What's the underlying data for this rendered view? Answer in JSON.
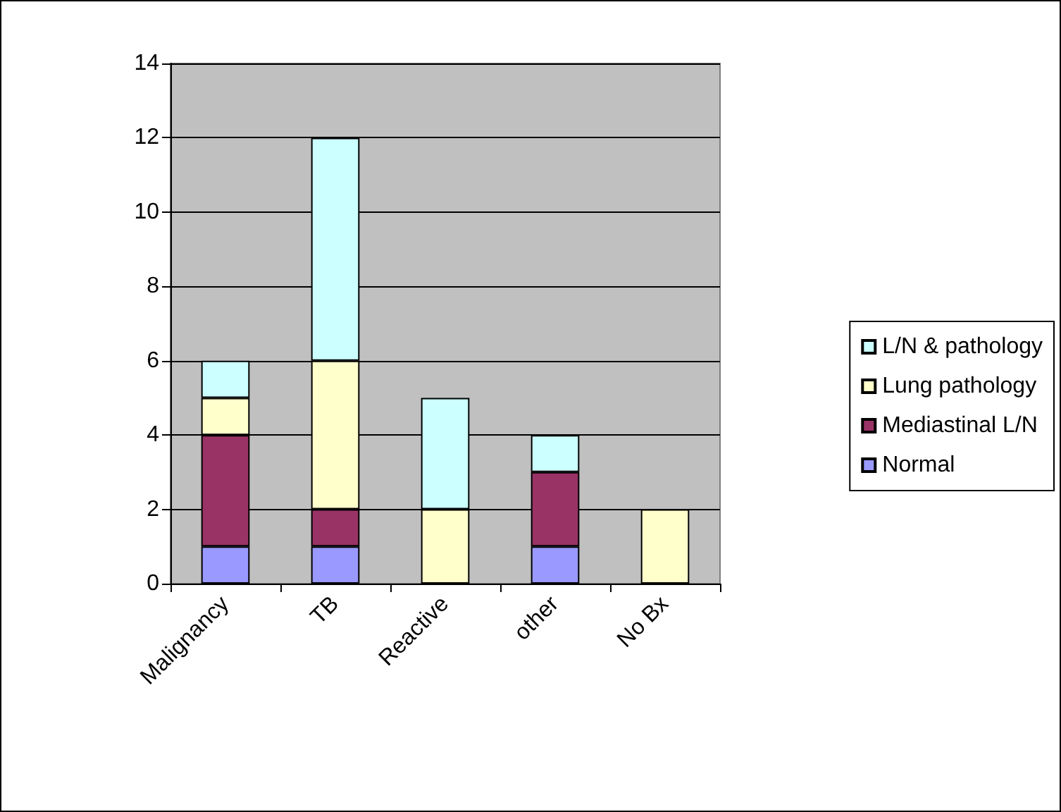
{
  "chart_data": {
    "type": "bar",
    "stacked": true,
    "categories": [
      "Malignancy",
      "TB",
      "Reactive",
      "other",
      "No Bx"
    ],
    "series": [
      {
        "name": "Normal",
        "color": "#9999ff",
        "values": [
          1,
          1,
          0,
          1,
          0
        ]
      },
      {
        "name": "Mediastinal L/N",
        "color": "#993366",
        "values": [
          3,
          1,
          0,
          2,
          0
        ]
      },
      {
        "name": "Lung pathology",
        "color": "#ffffcc",
        "values": [
          1,
          4,
          2,
          0,
          2
        ]
      },
      {
        "name": "L/N & pathology",
        "color": "#ccffff",
        "values": [
          1,
          6,
          3,
          1,
          0
        ]
      }
    ],
    "ylim": [
      0,
      14
    ],
    "yticks": [
      0,
      2,
      4,
      6,
      8,
      10,
      12,
      14
    ],
    "grid": "y",
    "legend": "right"
  }
}
